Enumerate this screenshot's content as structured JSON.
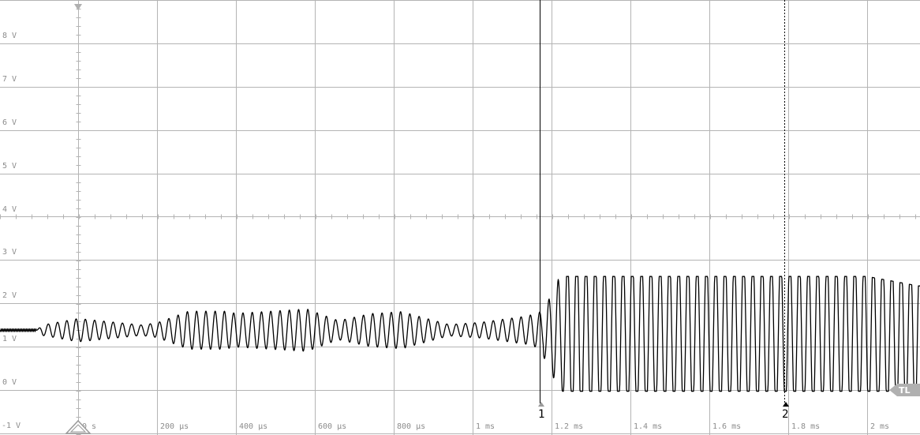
{
  "oscilloscope": {
    "voltage_labels": [
      "8 V",
      "7 V",
      "6 V",
      "5 V",
      "4 V",
      "3 V",
      "2 V",
      "1 V",
      "0 V",
      "-1 V"
    ],
    "time_labels": [
      "0 s",
      "200 µs",
      "400 µs",
      "600 µs",
      "800 µs",
      "1 ms",
      "1.2 ms",
      "1.4 ms",
      "1.6 ms",
      "1.8 ms",
      "2 ms"
    ],
    "cursor1_label": "1",
    "cursor2_label": "2",
    "trigger_level_label": "TL",
    "colors": {
      "grid": "#b4b4b4",
      "trace": "#000000",
      "label": "#8c8c8c",
      "trigger": "#b0b0b0"
    }
  },
  "chart_data": {
    "type": "line",
    "title": "",
    "xlabel": "",
    "ylabel": "",
    "x_unit": "s",
    "y_unit": "V",
    "xlim": [
      -0.0002,
      0.00213
    ],
    "ylim": [
      -1.0,
      8.9
    ],
    "grid": true,
    "signal": {
      "baseline_v": 1.38,
      "baseline_until_s": -0.000105,
      "cycle_period_s": 2.35e-05,
      "phase1": {
        "t_start_s": -0.000105,
        "t_end_s": 0.00118,
        "center_v": 1.38,
        "amplitude_envelope": {
          "t_s": [
            -0.000105,
            -9e-05,
            0.0,
            0.00016,
            0.0002,
            0.00028,
            0.00037,
            0.0004,
            0.00058,
            0.00066,
            0.00074,
            0.00082,
            0.00094,
            0.00102,
            0.00114,
            0.00118
          ],
          "amp_v": [
            0.0,
            0.12,
            0.27,
            0.12,
            0.17,
            0.44,
            0.44,
            0.39,
            0.49,
            0.22,
            0.38,
            0.43,
            0.13,
            0.18,
            0.33,
            0.45
          ]
        }
      },
      "transition": {
        "t_start_s": 0.00118,
        "t_end_s": 0.00128
      },
      "phase2": {
        "t_start_s": 0.00128,
        "t_end_s": 0.00213,
        "low_v": -0.03,
        "high_v": 2.62,
        "center_v": 1.3,
        "high_taper_from_s": 0.002,
        "high_end_v": 2.4
      }
    },
    "cursors": [
      {
        "name": "1",
        "t_s": 0.00117,
        "style": "solid"
      },
      {
        "name": "2",
        "t_s": 0.00179,
        "style": "dotted"
      }
    ],
    "trigger_level_v": 0.0
  }
}
